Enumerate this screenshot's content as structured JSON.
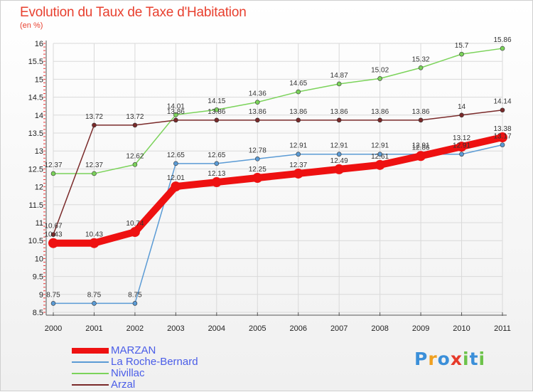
{
  "chart_data": {
    "type": "line",
    "title": "Evolution du Taux de Taxe d'Habitation",
    "subtitle": "(en %)",
    "x": [
      "2000",
      "2001",
      "2002",
      "2003",
      "2004",
      "2005",
      "2006",
      "2007",
      "2008",
      "2009",
      "2010",
      "2011"
    ],
    "ylim": [
      8.5,
      16
    ],
    "yticks": [
      "8.5",
      "9",
      "9.5",
      "10",
      "10.5",
      "11",
      "11.5",
      "12",
      "12.5",
      "13",
      "13.5",
      "14",
      "14.5",
      "15",
      "15.5",
      "16"
    ],
    "grid": true,
    "legend_position": "bottom-left",
    "series": [
      {
        "name": "MARZAN",
        "color": "#ee1111",
        "values": [
          10.43,
          10.43,
          10.74,
          12.01,
          12.13,
          12.25,
          12.37,
          12.49,
          12.61,
          12.86,
          13.12,
          13.38
        ],
        "labels": [
          "10.43",
          "10.43",
          "10.74",
          "12.01",
          "12.13",
          "12.25",
          "12.37",
          "12.49",
          "12.61",
          "12.86",
          "13.12",
          "13.38"
        ]
      },
      {
        "name": "La Roche-Bernard",
        "color": "#5b9bd5",
        "values": [
          8.75,
          8.75,
          8.75,
          12.65,
          12.65,
          12.78,
          12.91,
          12.91,
          12.91,
          12.91,
          12.91,
          13.17
        ],
        "labels": [
          "8.75",
          "8.75",
          "8.75",
          "12.65",
          "12.65",
          "12.78",
          "12.91",
          "12.91",
          "12.91",
          "12.91",
          "12.91",
          "13.17"
        ]
      },
      {
        "name": "Nivillac",
        "color": "#7bd35a",
        "values": [
          12.37,
          12.37,
          12.62,
          14.01,
          14.15,
          14.36,
          14.65,
          14.87,
          15.02,
          15.32,
          15.7,
          15.86
        ],
        "labels": [
          "12.37",
          "12.37",
          "12.62",
          "14.01",
          "14.15",
          "14.36",
          "14.65",
          "14.87",
          "15.02",
          "15.32",
          "15.7",
          "15.86"
        ]
      },
      {
        "name": "Arzal",
        "color": "#7a2a2a",
        "values": [
          10.67,
          13.72,
          13.72,
          13.86,
          13.86,
          13.86,
          13.86,
          13.86,
          13.86,
          13.86,
          14.0,
          14.14
        ],
        "labels": [
          "10.67",
          "13.72",
          "13.72",
          "13.86",
          "13.86",
          "13.86",
          "13.86",
          "13.86",
          "13.86",
          "13.86",
          "14",
          "14.14"
        ]
      }
    ]
  },
  "logo": {
    "letters": [
      "P",
      "r",
      "o",
      "x",
      "i",
      "t",
      "i"
    ],
    "colors": [
      "#3b8fd9",
      "#f0a020",
      "#3b8fd9",
      "#e63a2a",
      "#6cc24a",
      "#3b8fd9",
      "#6cc24a"
    ]
  }
}
